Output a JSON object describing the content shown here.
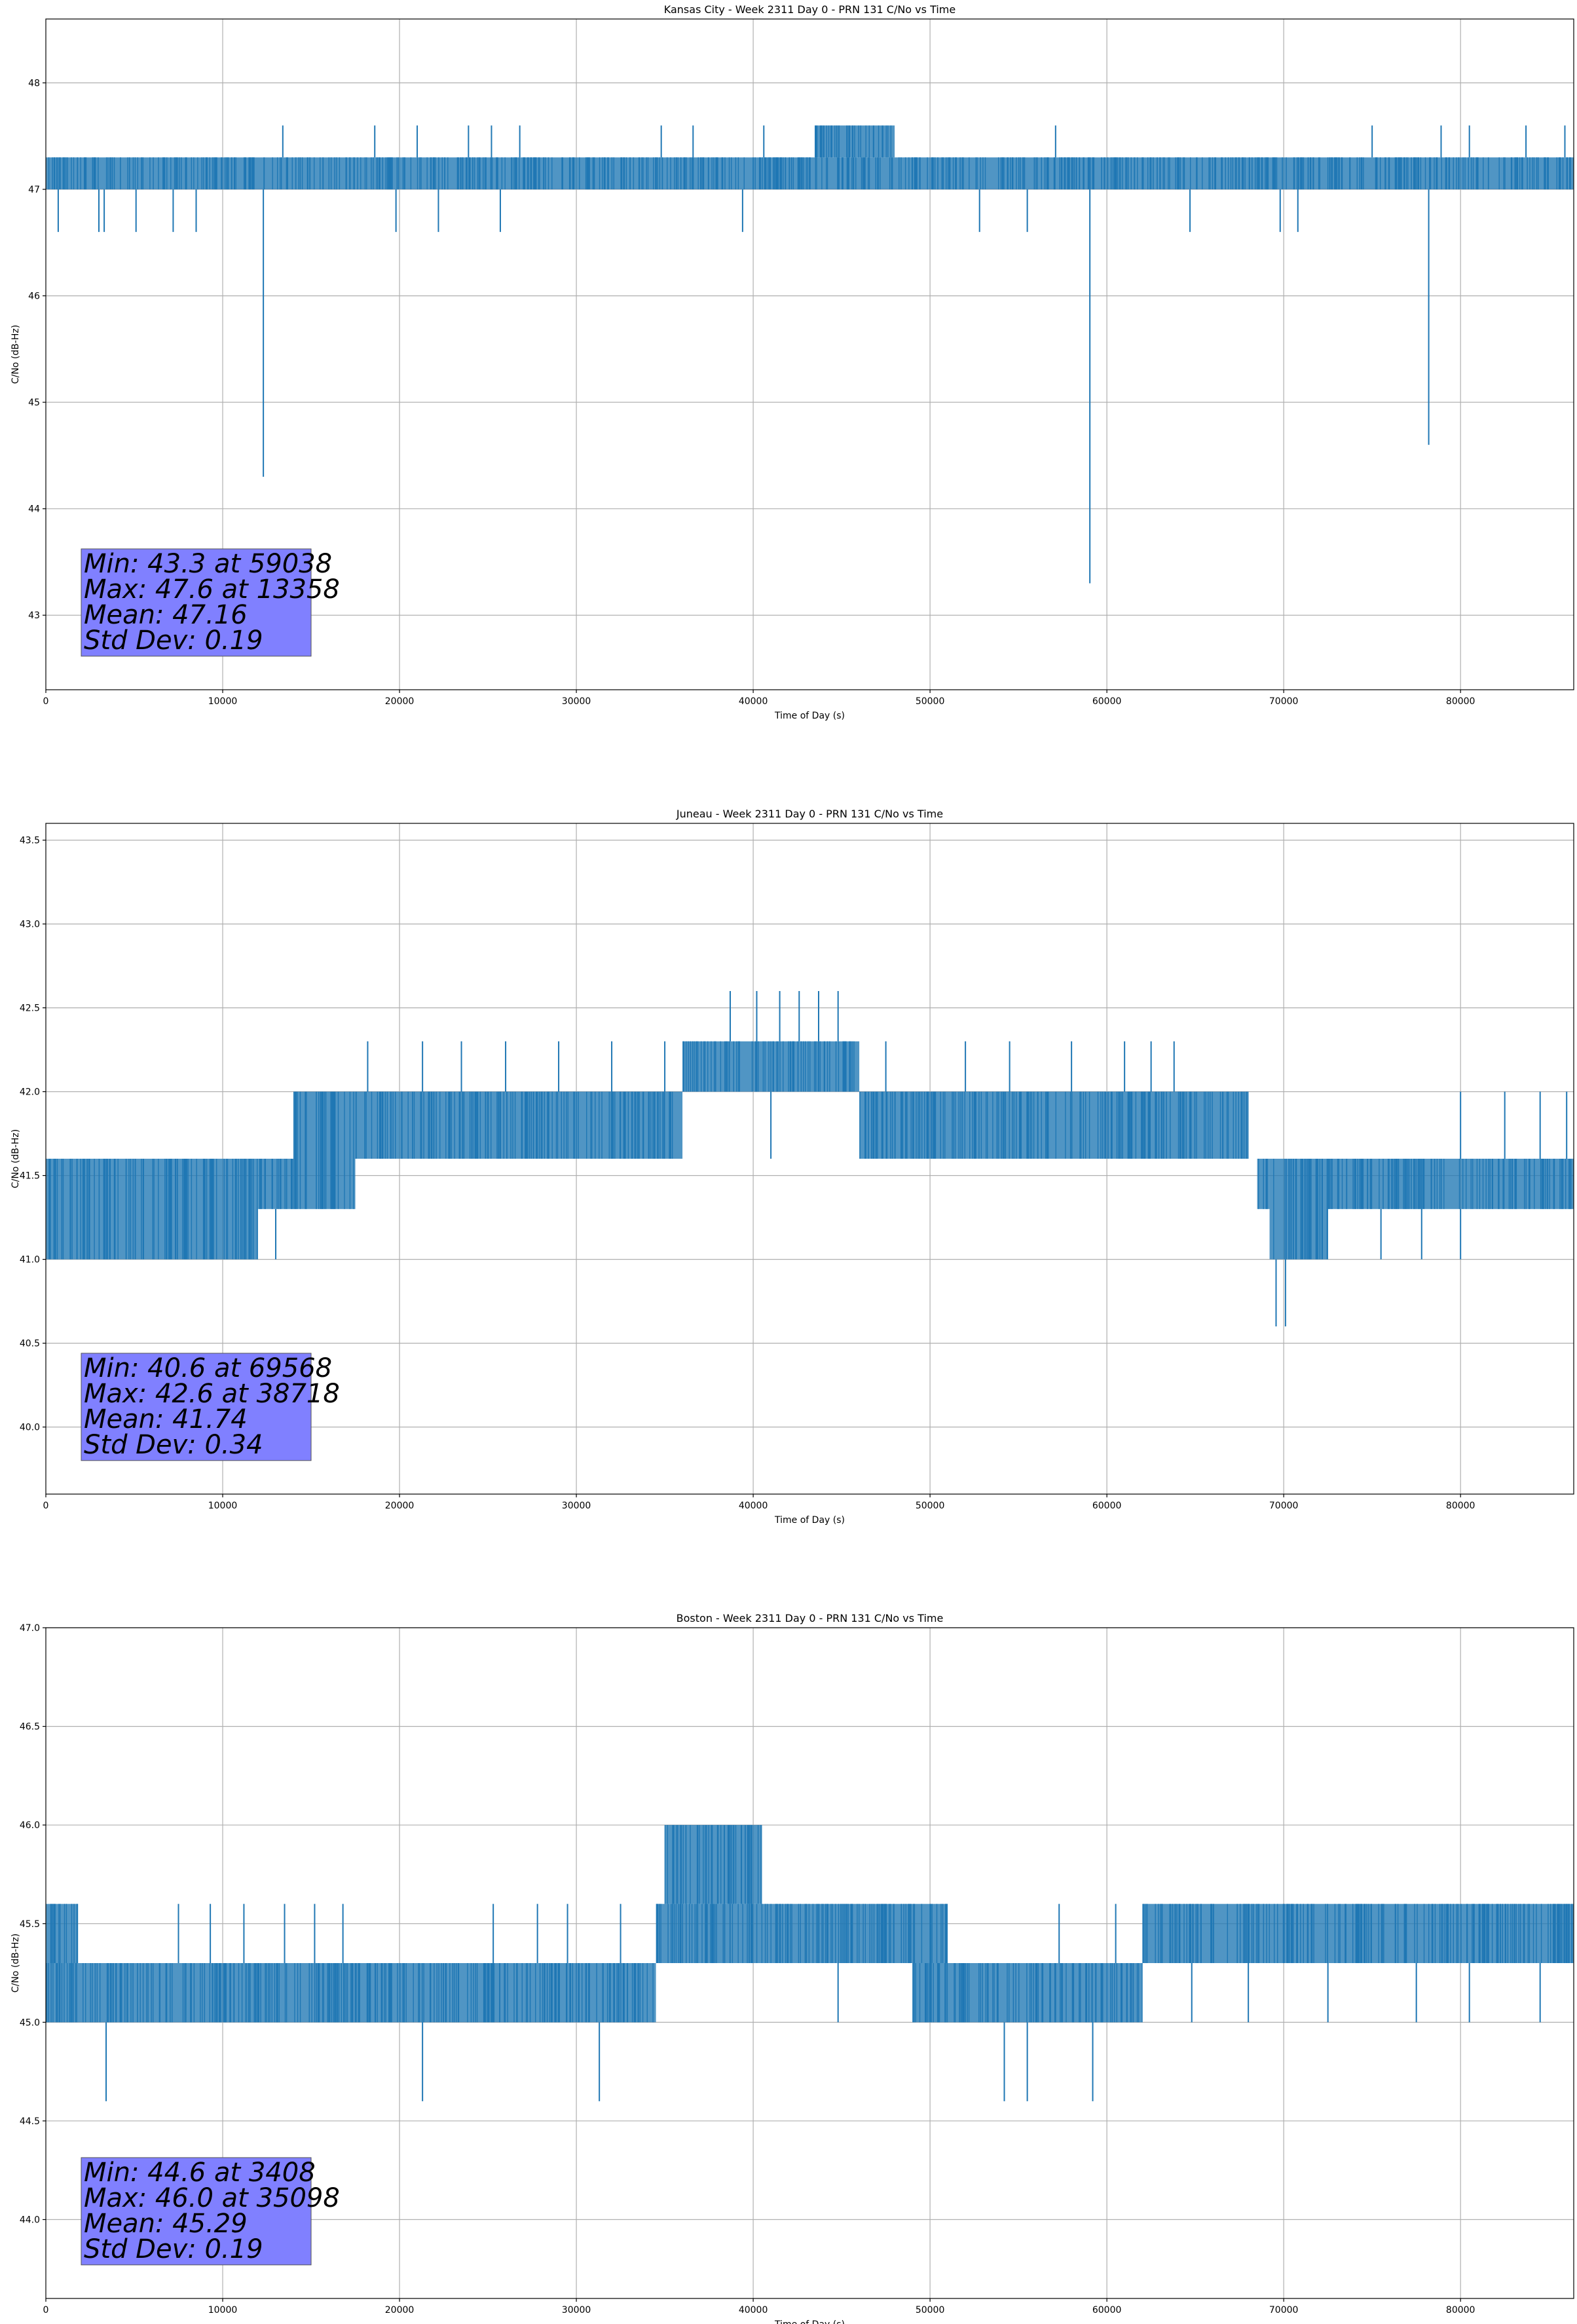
{
  "chart_data": [
    {
      "type": "line",
      "title": "Kansas City - Week 2311 Day 0 - PRN 131 C/No vs Time",
      "xlabel": "Time of Day (s)",
      "ylabel": "C/No (dB-Hz)",
      "xlim": [
        0,
        86400
      ],
      "ylim": [
        42.3,
        48.6
      ],
      "xticks": [
        0,
        10000,
        20000,
        30000,
        40000,
        50000,
        60000,
        70000,
        80000
      ],
      "yticks": [
        43,
        44,
        45,
        46,
        47,
        48
      ],
      "ytick_labels": [
        "43",
        "44",
        "45",
        "46",
        "47",
        "48"
      ],
      "grid": true,
      "color": "#1f77b4",
      "series": [
        {
          "base_levels": [
            {
              "x": [
                0,
                86400
              ],
              "y": [
                47.0,
                47.3
              ]
            },
            {
              "x": [
                43500,
                48000
              ],
              "y": [
                47.3,
                47.6
              ]
            }
          ],
          "spikes": [
            [
              700,
              46.6
            ],
            [
              3000,
              46.6
            ],
            [
              3300,
              46.6
            ],
            [
              5100,
              46.6
            ],
            [
              7200,
              46.6
            ],
            [
              8500,
              46.6
            ],
            [
              12300,
              44.3
            ],
            [
              13400,
              47.6
            ],
            [
              18600,
              47.6
            ],
            [
              21000,
              47.6
            ],
            [
              19800,
              46.6
            ],
            [
              22200,
              46.6
            ],
            [
              23900,
              47.6
            ],
            [
              25200,
              47.6
            ],
            [
              25700,
              46.6
            ],
            [
              26800,
              47.6
            ],
            [
              34800,
              47.6
            ],
            [
              36600,
              47.6
            ],
            [
              39400,
              46.6
            ],
            [
              40600,
              47.6
            ],
            [
              52800,
              46.6
            ],
            [
              55500,
              46.6
            ],
            [
              57100,
              47.6
            ],
            [
              59038,
              43.3
            ],
            [
              64700,
              46.6
            ],
            [
              69800,
              46.6
            ],
            [
              70800,
              46.6
            ],
            [
              75000,
              47.6
            ],
            [
              78200,
              44.6
            ],
            [
              78900,
              47.6
            ],
            [
              80500,
              47.6
            ],
            [
              83700,
              47.6
            ],
            [
              85900,
              47.6
            ]
          ]
        }
      ],
      "annotation": [
        "Min: 43.3 at 59038",
        "Max: 47.6 at 13358",
        "Mean: 47.16",
        "Std Dev: 0.19"
      ]
    },
    {
      "type": "line",
      "title": "Juneau - Week 2311 Day 0 - PRN 131 C/No vs Time",
      "xlabel": "Time of Day (s)",
      "ylabel": "C/No (dB-Hz)",
      "xlim": [
        0,
        86400
      ],
      "ylim": [
        39.6,
        43.6
      ],
      "xticks": [
        0,
        10000,
        20000,
        30000,
        40000,
        50000,
        60000,
        70000,
        80000
      ],
      "yticks": [
        40.0,
        40.5,
        41.0,
        41.5,
        42.0,
        42.5,
        43.0,
        43.5
      ],
      "ytick_labels": [
        "40.0",
        "40.5",
        "41.0",
        "41.5",
        "42.0",
        "42.5",
        "43.0",
        "43.5"
      ],
      "grid": true,
      "color": "#1f77b4",
      "series": [
        {
          "base_levels": [
            {
              "x": [
                0,
                12000
              ],
              "y": [
                41.0,
                41.6
              ]
            },
            {
              "x": [
                12000,
                14000
              ],
              "y": [
                41.3,
                41.6
              ]
            },
            {
              "x": [
                14000,
                17500
              ],
              "y": [
                41.3,
                42.0
              ]
            },
            {
              "x": [
                17500,
                36000
              ],
              "y": [
                41.6,
                42.0
              ]
            },
            {
              "x": [
                36000,
                46000
              ],
              "y": [
                42.0,
                42.3
              ]
            },
            {
              "x": [
                46000,
                68000
              ],
              "y": [
                41.6,
                42.0
              ]
            },
            {
              "x": [
                68500,
                69200
              ],
              "y": [
                41.3,
                41.6
              ]
            },
            {
              "x": [
                69200,
                72500
              ],
              "y": [
                41.0,
                41.6
              ]
            },
            {
              "x": [
                72500,
                86400
              ],
              "y": [
                41.3,
                41.6
              ]
            }
          ],
          "spikes": [
            [
              18200,
              42.3
            ],
            [
              21300,
              42.3
            ],
            [
              23500,
              42.3
            ],
            [
              26000,
              42.3
            ],
            [
              29000,
              42.3
            ],
            [
              32000,
              42.3
            ],
            [
              35000,
              42.3
            ],
            [
              38700,
              42.6
            ],
            [
              40200,
              42.6
            ],
            [
              41500,
              42.6
            ],
            [
              42600,
              42.6
            ],
            [
              43700,
              42.6
            ],
            [
              44800,
              42.6
            ],
            [
              41000,
              41.6
            ],
            [
              47500,
              42.3
            ],
            [
              52000,
              42.3
            ],
            [
              53000,
              41.6
            ],
            [
              54500,
              42.3
            ],
            [
              58000,
              42.3
            ],
            [
              61000,
              42.3
            ],
            [
              62500,
              42.3
            ],
            [
              63800,
              42.3
            ],
            [
              69568,
              40.6
            ],
            [
              70100,
              40.6
            ],
            [
              75500,
              41.0
            ],
            [
              77800,
              41.0
            ],
            [
              80000,
              41.0
            ],
            [
              80000,
              42.0
            ],
            [
              82500,
              42.0
            ],
            [
              84500,
              42.0
            ],
            [
              86000,
              42.0
            ],
            [
              1200,
              41.0
            ],
            [
              3000,
              41.0
            ],
            [
              5500,
              41.0
            ],
            [
              9000,
              41.0
            ],
            [
              11500,
              41.0
            ],
            [
              13000,
              41.0
            ]
          ]
        }
      ],
      "annotation": [
        "Min: 40.6 at 69568",
        "Max: 42.6 at 38718",
        "Mean: 41.74",
        "Std Dev: 0.34"
      ]
    },
    {
      "type": "line",
      "title": "Boston - Week 2311 Day 0 - PRN 131 C/No vs Time",
      "xlabel": "Time of Day (s)",
      "ylabel": "C/No (dB-Hz)",
      "xlim": [
        0,
        86400
      ],
      "ylim": [
        43.6,
        47.0
      ],
      "xticks": [
        0,
        10000,
        20000,
        30000,
        40000,
        50000,
        60000,
        70000,
        80000
      ],
      "yticks": [
        44.0,
        44.5,
        45.0,
        45.5,
        46.0,
        46.5,
        47.0
      ],
      "ytick_labels": [
        "44.0",
        "44.5",
        "45.0",
        "45.5",
        "46.0",
        "46.5",
        "47.0"
      ],
      "grid": true,
      "color": "#1f77b4",
      "series": [
        {
          "base_levels": [
            {
              "x": [
                0,
                34500
              ],
              "y": [
                45.0,
                45.3
              ]
            },
            {
              "x": [
                0,
                1800
              ],
              "y": [
                45.3,
                45.6
              ]
            },
            {
              "x": [
                34500,
                36000
              ],
              "y": [
                45.3,
                45.6
              ]
            },
            {
              "x": [
                35000,
                40500
              ],
              "y": [
                45.6,
                46.0
              ]
            },
            {
              "x": [
                36000,
                51000
              ],
              "y": [
                45.3,
                45.6
              ]
            },
            {
              "x": [
                49000,
                62000
              ],
              "y": [
                45.0,
                45.3
              ]
            },
            {
              "x": [
                62000,
                86400
              ],
              "y": [
                45.3,
                45.6
              ]
            }
          ],
          "spikes": [
            [
              3408,
              44.6
            ],
            [
              21300,
              44.6
            ],
            [
              31300,
              44.6
            ],
            [
              54200,
              44.6
            ],
            [
              55500,
              44.6
            ],
            [
              59200,
              44.6
            ],
            [
              7500,
              45.6
            ],
            [
              9300,
              45.6
            ],
            [
              11200,
              45.6
            ],
            [
              13500,
              45.6
            ],
            [
              15200,
              45.6
            ],
            [
              16800,
              45.6
            ],
            [
              25300,
              45.6
            ],
            [
              27800,
              45.6
            ],
            [
              29500,
              45.6
            ],
            [
              32500,
              45.6
            ],
            [
              44800,
              45.0
            ],
            [
              51500,
              45.0
            ],
            [
              57300,
              45.6
            ],
            [
              60500,
              45.6
            ],
            [
              64800,
              45.0
            ],
            [
              68000,
              45.0
            ],
            [
              72500,
              45.0
            ],
            [
              77500,
              45.0
            ],
            [
              80500,
              45.0
            ],
            [
              84500,
              45.0
            ]
          ]
        }
      ],
      "annotation": [
        "Min: 44.6 at 3408",
        "Max: 46.0 at 35098",
        "Mean: 45.29",
        "Std Dev: 0.19"
      ]
    }
  ]
}
